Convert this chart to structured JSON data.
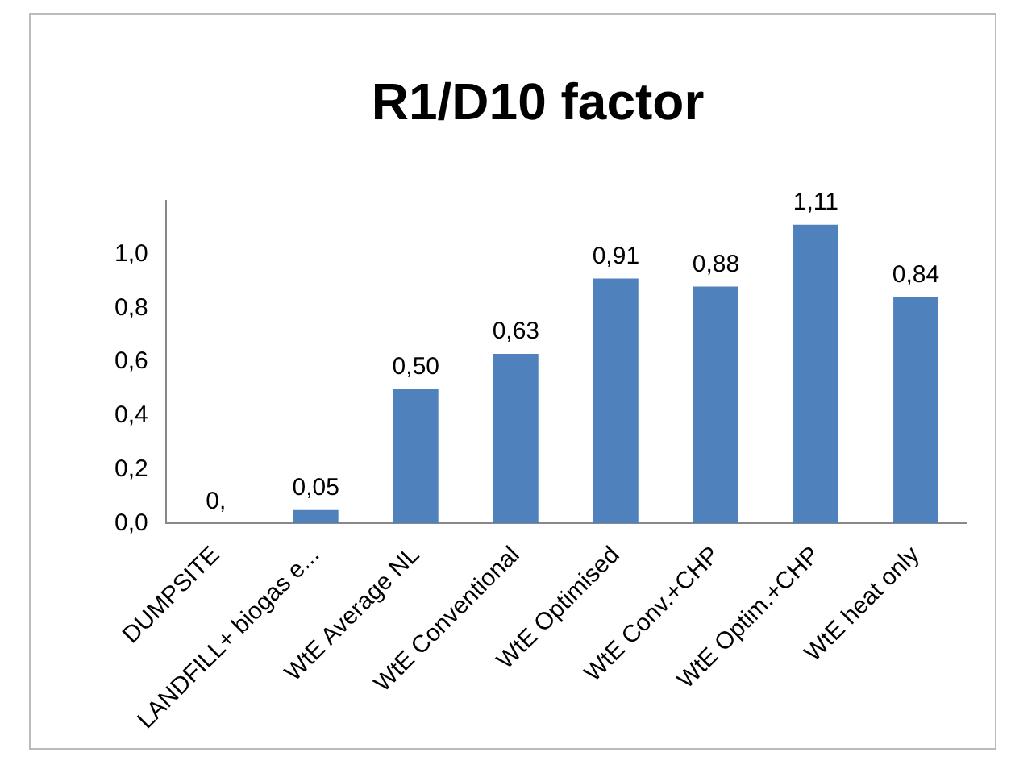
{
  "chart_data": {
    "type": "bar",
    "title": "R1/D10 factor",
    "categories": [
      "DUMPSITE",
      "LANDFILL+ biogas e...",
      "WtE Average NL",
      "WtE Conventional",
      "WtE Optimised",
      "WtE Conv.+CHP",
      "WtE Optim.+CHP",
      "WtE heat only"
    ],
    "values": [
      0,
      0.05,
      0.5,
      0.63,
      0.91,
      0.88,
      1.11,
      0.84
    ],
    "value_labels": [
      "0,",
      "0,05",
      "0,50",
      "0,63",
      "0,91",
      "0,88",
      "1,11",
      "0,84"
    ],
    "color": "#4f81bd",
    "ylim": [
      0,
      1.2
    ],
    "yticks": [
      {
        "value": 0,
        "label": "0,0"
      },
      {
        "value": 0.2,
        "label": "0,2"
      },
      {
        "value": 0.4,
        "label": "0,4"
      },
      {
        "value": 0.6,
        "label": "0,6"
      },
      {
        "value": 0.8,
        "label": "0,8"
      },
      {
        "value": 1,
        "label": "1,0"
      }
    ],
    "grid": false,
    "legend": false
  }
}
